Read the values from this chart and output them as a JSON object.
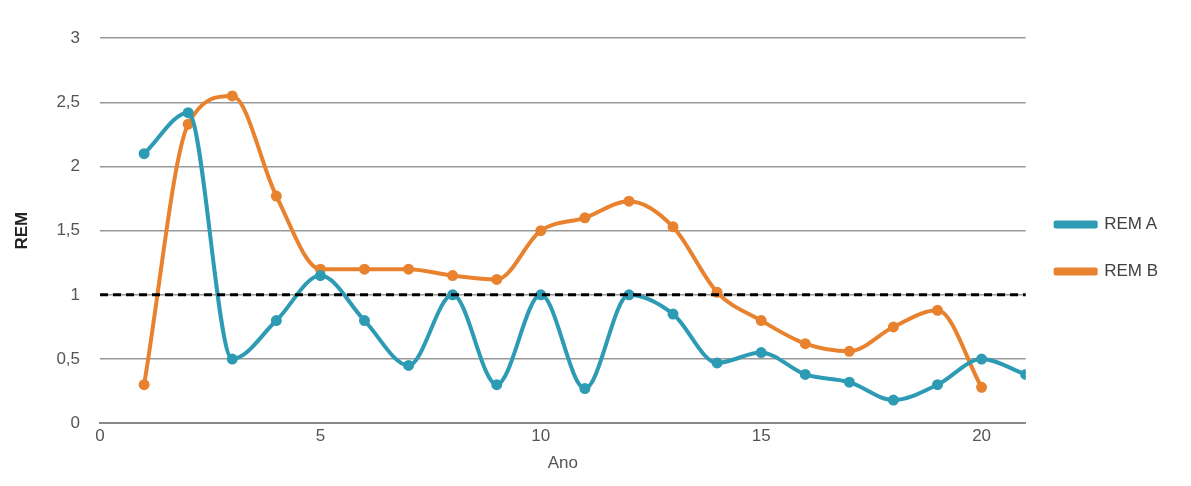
{
  "chart_data": {
    "type": "line",
    "xlabel": "Ano",
    "ylabel": "REM",
    "xlim": [
      0,
      21
    ],
    "xticks": [
      0,
      5,
      10,
      15,
      20
    ],
    "ylim": [
      0,
      3
    ],
    "yticks": [
      0,
      {
        "value": 0.5,
        "label": "0,5"
      },
      1,
      {
        "value": 1.5,
        "label": "1,5"
      },
      2,
      {
        "value": 2.5,
        "label": "2,5"
      },
      3
    ],
    "grid": "y",
    "legend": "right",
    "marker": "circle",
    "line_style": "solid",
    "ref_lines": [
      {
        "axis": "y",
        "value": 1,
        "color": "#000000",
        "line_style": "dashed"
      }
    ],
    "series": [
      {
        "name": "REM A",
        "color": "#2e9bb5",
        "x": [
          1,
          2,
          3,
          4,
          5,
          6,
          7,
          8,
          9,
          10,
          11,
          12,
          13,
          14,
          15,
          16,
          17,
          18,
          19,
          20,
          21
        ],
        "values": [
          2.1,
          2.42,
          0.5,
          0.8,
          1.15,
          0.8,
          0.45,
          1.0,
          0.3,
          1.0,
          0.27,
          1.0,
          0.85,
          0.47,
          0.55,
          0.38,
          0.32,
          0.18,
          0.3,
          0.5,
          0.38
        ]
      },
      {
        "name": "REM B",
        "color": "#e8822e",
        "x": [
          1,
          2,
          3,
          4,
          5,
          6,
          7,
          8,
          9,
          10,
          11,
          12,
          13,
          14,
          15,
          16,
          17,
          18,
          19,
          20
        ],
        "values": [
          0.3,
          2.33,
          2.55,
          1.77,
          1.2,
          1.2,
          1.2,
          1.15,
          1.12,
          1.5,
          1.6,
          1.73,
          1.53,
          1.02,
          0.8,
          0.62,
          0.56,
          0.75,
          0.88,
          0.28
        ]
      }
    ]
  }
}
